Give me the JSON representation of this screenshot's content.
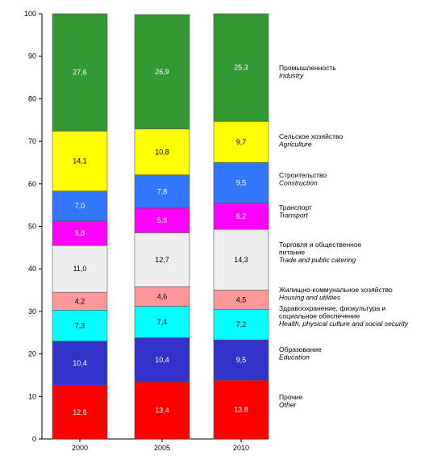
{
  "chart_data": {
    "type": "bar",
    "stacked": true,
    "categories": [
      "2000",
      "2005",
      "2010"
    ],
    "ylim": [
      0,
      100
    ],
    "y_ticks": [
      "0",
      "10",
      "20",
      "30",
      "40",
      "50",
      "60",
      "70",
      "80",
      "90",
      "100"
    ],
    "grid": false,
    "legend_placement": "right",
    "series": [
      {
        "name": "Прочие",
        "name_en": "Other",
        "color": "#ff0000",
        "label_color": "#ffffff",
        "values": [
          12.6,
          13.4,
          13.8
        ],
        "labels": [
          "12,6",
          "13,4",
          "13,8"
        ]
      },
      {
        "name": "Образование",
        "name_en": "Education",
        "color": "#3333cc",
        "label_color": "#ffffff",
        "values": [
          10.4,
          10.4,
          9.5
        ],
        "labels": [
          "10,4",
          "10,4",
          "9,5"
        ]
      },
      {
        "name": "Здравоохранение, физкультура и социальное обеспечение",
        "name_en": "Health, physical culture and social security",
        "color": "#00ffff",
        "label_color": "#000000",
        "values": [
          7.3,
          7.4,
          7.2
        ],
        "labels": [
          "7,3",
          "7,4",
          "7,2"
        ]
      },
      {
        "name": "Жилищно-коммунальное хозяйство",
        "name_en": "Housing and utilities",
        "color": "#ff9999",
        "label_color": "#000000",
        "values": [
          4.2,
          4.6,
          4.5
        ],
        "labels": [
          "4,2",
          "4,6",
          "4,5"
        ]
      },
      {
        "name": "Торговля и общественное питание",
        "name_en": "Trade and public catering",
        "color": "#eeeeee",
        "label_color": "#000000",
        "values": [
          11.0,
          12.7,
          14.3
        ],
        "labels": [
          "11,0",
          "12,7",
          "14,3"
        ]
      },
      {
        "name": "Транспорт",
        "name_en": "Transport",
        "color": "#ff00ff",
        "label_color": "#ffffff",
        "values": [
          5.8,
          5.8,
          6.2
        ],
        "labels": [
          "5,8",
          "5,8",
          "6,2"
        ]
      },
      {
        "name": "Строительство",
        "name_en": "Construction",
        "color": "#3377ff",
        "label_color": "#ffffff",
        "values": [
          7.0,
          7.8,
          9.5
        ],
        "labels": [
          "7,0",
          "7,8",
          "9,5"
        ]
      },
      {
        "name": "Сельское хозяйство",
        "name_en": "Agriculture",
        "color": "#ffff00",
        "label_color": "#000000",
        "values": [
          14.1,
          10.8,
          9.7
        ],
        "labels": [
          "14,1",
          "10,8",
          "9,7"
        ]
      },
      {
        "name": "Промышленность",
        "name_en": "Industry",
        "color": "#339933",
        "label_color": "#ffffff",
        "values": [
          27.6,
          26.9,
          25.3
        ],
        "labels": [
          "27,6",
          "26,9",
          "25,3"
        ]
      }
    ],
    "legend": [
      {
        "lines_ru": [
          "Промышленность"
        ],
        "lines_en": [
          "Industry"
        ]
      },
      {
        "lines_ru": [
          "Сельское хозяйство"
        ],
        "lines_en": [
          "Agriculture"
        ]
      },
      {
        "lines_ru": [
          "Строительство"
        ],
        "lines_en": [
          "Construction"
        ]
      },
      {
        "lines_ru": [
          "Транспорт"
        ],
        "lines_en": [
          "Transport"
        ]
      },
      {
        "lines_ru": [
          "Торговля и общественное",
          "питание"
        ],
        "lines_en": [
          "Trade and public catering"
        ]
      },
      {
        "lines_ru": [
          "Жилищно-коммунальное хозяйство"
        ],
        "lines_en": [
          "Housing and utilities"
        ]
      },
      {
        "lines_ru": [
          "Здравоохранение, физкультура и",
          "социальное обеспечение"
        ],
        "lines_en": [
          "Health, physical culture and social security"
        ]
      },
      {
        "lines_ru": [
          "Образование"
        ],
        "lines_en": [
          "Education"
        ]
      },
      {
        "lines_ru": [
          "Прочие"
        ],
        "lines_en": [
          "Other"
        ]
      }
    ]
  }
}
